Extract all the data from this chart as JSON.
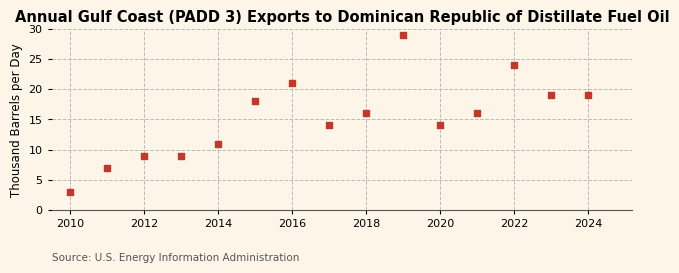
{
  "title": "Annual Gulf Coast (PADD 3) Exports to Dominican Republic of Distillate Fuel Oil",
  "ylabel": "Thousand Barrels per Day",
  "source": "Source: U.S. Energy Information Administration",
  "years": [
    2010,
    2011,
    2012,
    2013,
    2014,
    2015,
    2016,
    2017,
    2018,
    2019,
    2020,
    2021,
    2022,
    2023,
    2024
  ],
  "values": [
    3,
    7,
    9,
    9,
    11,
    18,
    21,
    14,
    16,
    29,
    14,
    16,
    24,
    19,
    19
  ],
  "marker_color": "#c0392b",
  "marker": "s",
  "marker_size": 4,
  "xlim": [
    2009.5,
    2025.2
  ],
  "ylim": [
    0,
    30
  ],
  "yticks": [
    0,
    5,
    10,
    15,
    20,
    25,
    30
  ],
  "xticks": [
    2010,
    2012,
    2014,
    2016,
    2018,
    2020,
    2022,
    2024
  ],
  "background_color": "#fdf6e8",
  "grid_color": "#bbbbbb",
  "title_fontsize": 10.5,
  "label_fontsize": 8.5,
  "tick_fontsize": 8,
  "source_fontsize": 7.5
}
